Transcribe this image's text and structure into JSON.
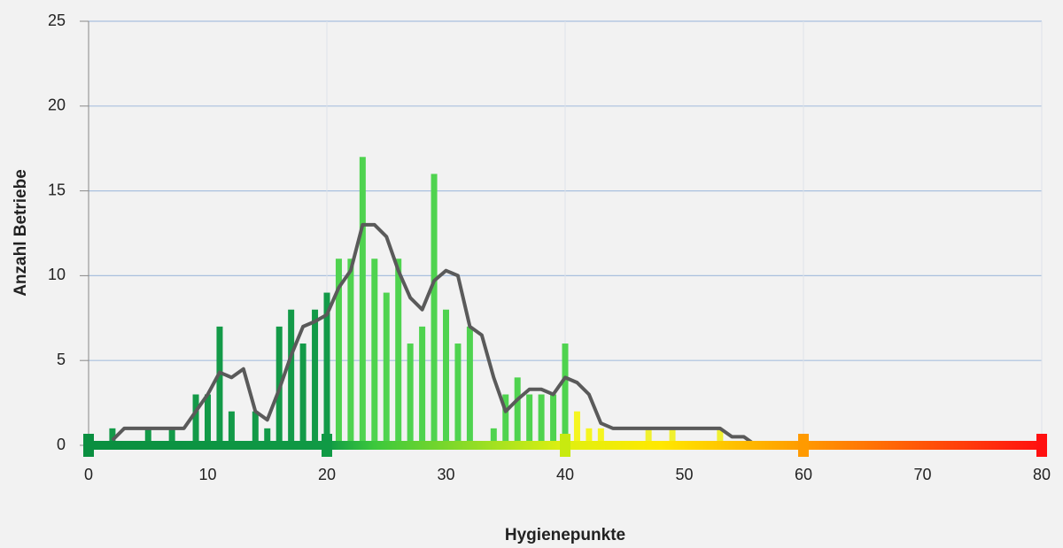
{
  "chart_data": {
    "type": "bar",
    "xlabel": "Hygienepunkte",
    "ylabel": "Anzahl Betriebe",
    "xlim": [
      0,
      80
    ],
    "ylim": [
      0,
      25
    ],
    "xticks": [
      0,
      10,
      20,
      30,
      40,
      50,
      60,
      70,
      80
    ],
    "yticks": [
      0,
      5,
      10,
      15,
      20,
      25
    ],
    "grid": true,
    "series": [
      {
        "type": "bar",
        "x": [
          2,
          5,
          7,
          9,
          10,
          11,
          12,
          14,
          15,
          16,
          17,
          18,
          19,
          20,
          21,
          22,
          23,
          24,
          25,
          26,
          27,
          28,
          29,
          30,
          31,
          32,
          34,
          35,
          36,
          37,
          38,
          39,
          40,
          41,
          42,
          43,
          47,
          49,
          53
        ],
        "values": [
          1,
          1,
          1,
          3,
          3,
          7,
          2,
          2,
          1,
          7,
          8,
          6,
          8,
          9,
          11,
          11,
          17,
          11,
          9,
          11,
          6,
          7,
          16,
          8,
          6,
          7,
          1,
          3,
          4,
          3,
          3,
          3,
          6,
          2,
          1,
          1,
          1,
          1,
          1
        ],
        "colors": [
          "#139a48",
          "#139a48",
          "#139a48",
          "#139a48",
          "#139a48",
          "#139a48",
          "#139a48",
          "#139a48",
          "#139a48",
          "#139a48",
          "#139a48",
          "#139a48",
          "#139a48",
          "#139a48",
          "#4fd34f",
          "#4fd34f",
          "#4fd34f",
          "#4fd34f",
          "#4fd34f",
          "#4fd34f",
          "#4fd34f",
          "#4fd34f",
          "#4fd34f",
          "#4fd34f",
          "#4fd34f",
          "#4fd34f",
          "#4fd34f",
          "#4fd34f",
          "#4fd34f",
          "#4fd34f",
          "#4fd34f",
          "#4fd34f",
          "#4fd34f",
          "#f5f520",
          "#f5f520",
          "#f5f520",
          "#f0f030",
          "#f0f030",
          "#f0f030"
        ]
      },
      {
        "type": "line",
        "x": [
          2,
          3,
          4,
          5,
          6,
          7,
          8,
          9,
          10,
          11,
          12,
          13,
          14,
          15,
          16,
          17,
          18,
          19,
          20,
          21,
          22,
          23,
          24,
          25,
          26,
          27,
          28,
          29,
          30,
          31,
          32,
          33,
          34,
          35,
          36,
          37,
          38,
          39,
          40,
          41,
          42,
          43,
          44,
          45,
          46,
          47,
          48,
          49,
          50,
          51,
          52,
          53,
          54,
          55,
          56
        ],
        "values": [
          0.3,
          1,
          1,
          1,
          1,
          1,
          1,
          2,
          3,
          4.3,
          4,
          4.5,
          2,
          1.5,
          3.3,
          5.3,
          7,
          7.3,
          7.7,
          9.3,
          10.3,
          13,
          13,
          12.3,
          10.3,
          8.7,
          8,
          9.7,
          10.3,
          10,
          7,
          6.5,
          4,
          2,
          2.7,
          3.3,
          3.3,
          3,
          4,
          3.7,
          3,
          1.3,
          1,
          1,
          1,
          1,
          1,
          1,
          1,
          1,
          1,
          1,
          0.5,
          0.5,
          0
        ],
        "color": "#5a5a5a"
      }
    ]
  }
}
